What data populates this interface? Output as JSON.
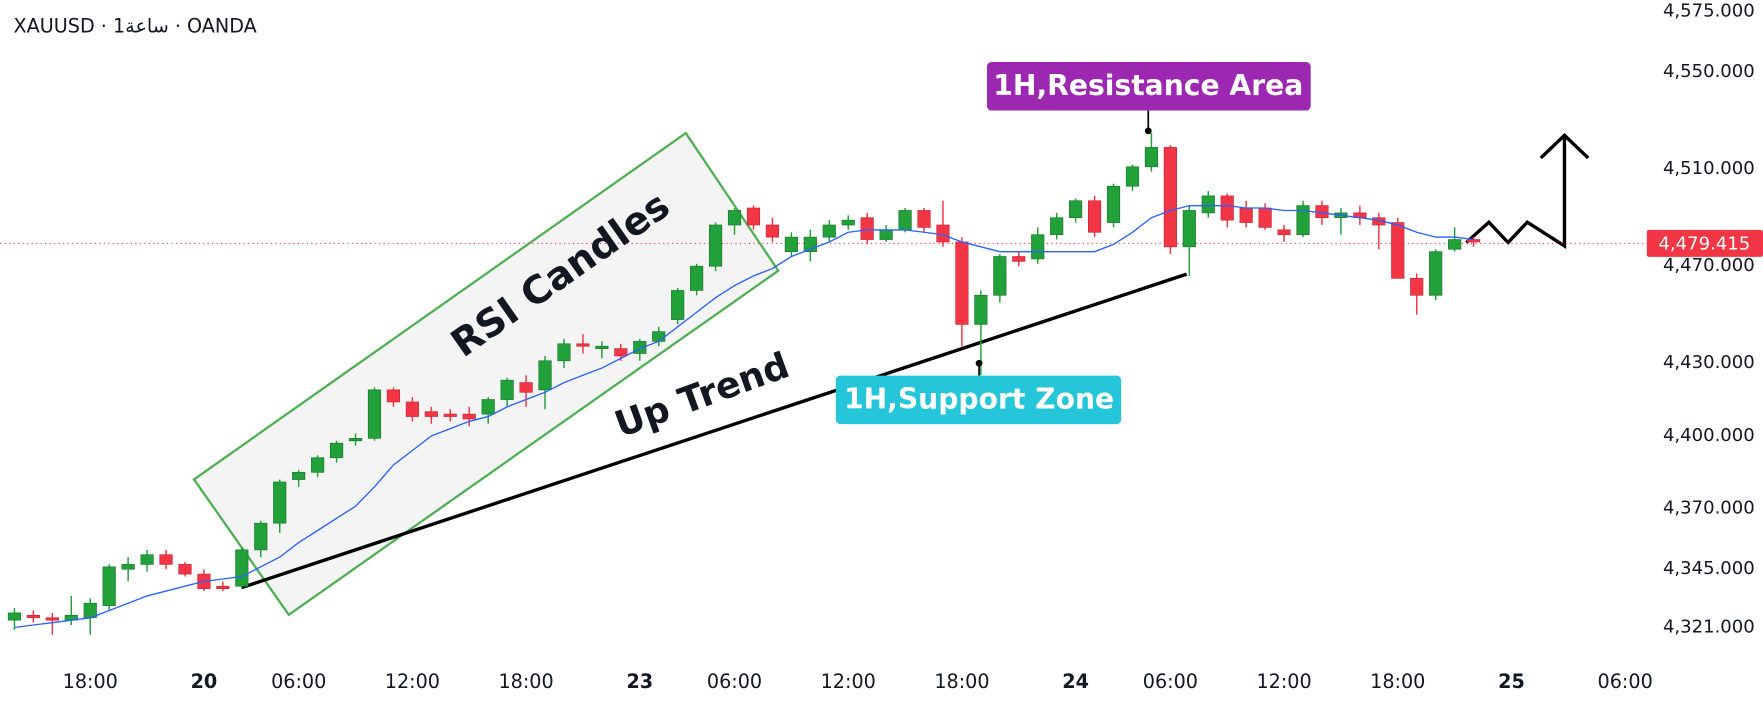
{
  "chart_data": {
    "type": "candlestick",
    "title": "XAUUSD · 1ساعة · OANDA",
    "categories": [
      null,
      null,
      null,
      null,
      "18:00",
      null,
      null,
      null,
      null,
      null,
      "20",
      null,
      null,
      null,
      null,
      "06:00",
      null,
      null,
      null,
      null,
      null,
      "12:00",
      null,
      null,
      null,
      null,
      null,
      "18:00",
      null,
      null,
      null,
      null,
      null,
      "23",
      null,
      null,
      null,
      null,
      "06:00",
      null,
      null,
      null,
      null,
      null,
      "12:00",
      null,
      null,
      null,
      null,
      null,
      "18:00",
      null,
      null,
      null,
      null,
      null,
      "24",
      null,
      null,
      null,
      null,
      "06:00",
      null,
      null,
      null,
      null,
      null,
      "12:00",
      null,
      null,
      null,
      null,
      null,
      "18:00",
      null,
      null,
      null,
      null,
      null,
      "25",
      null,
      null,
      null,
      null,
      null,
      "06:00",
      null
    ],
    "open": [
      4324,
      4326,
      4325,
      4324,
      4325,
      4330,
      4345,
      4347,
      4351,
      4347,
      4343,
      4338,
      4338,
      4353,
      4364,
      4382,
      4385,
      4391,
      4398,
      4399,
      4419,
      4414,
      4410,
      4409,
      4409,
      4409,
      4415,
      4422,
      4419,
      4431,
      4438,
      4436,
      4436,
      4434,
      4439,
      4448,
      4460,
      4470,
      4487,
      4494,
      4487,
      4476,
      4476,
      4482,
      4487,
      4490,
      4481,
      4485,
      4493,
      4487,
      4480,
      4446,
      4458,
      4474,
      4473,
      4483,
      4490,
      4497,
      4488,
      4503,
      4511,
      4519,
      4478,
      4492,
      4499,
      4494,
      4494,
      4485,
      4483,
      4495,
      4490,
      4492,
      4490,
      4488,
      4465,
      4458,
      4477,
      4481,
      null,
      null,
      null,
      null,
      null,
      null,
      null,
      null,
      null
    ],
    "high": [
      4329,
      4328,
      4327,
      4334,
      4333,
      4347,
      4350,
      4353,
      4353,
      4348,
      4345,
      4340,
      4354,
      4365,
      4382,
      4386,
      4392,
      4398,
      4401,
      4420,
      4420,
      4416,
      4412,
      4411,
      4412,
      4416,
      4424,
      4425,
      4433,
      4440,
      4442,
      4439,
      4438,
      4440,
      4445,
      4461,
      4471,
      4488,
      4494,
      4495,
      4490,
      4484,
      4485,
      4489,
      4491,
      4492,
      4487,
      4494,
      4494,
      4497,
      4482,
      4460,
      4475,
      4476,
      4486,
      4492,
      4498,
      4499,
      4504,
      4512,
      4525,
      4520,
      4495,
      4501,
      4500,
      4497,
      4496,
      4487,
      4497,
      4497,
      4494,
      4495,
      4492,
      4490,
      4467,
      4477,
      4486,
      4482,
      null,
      null,
      null,
      null,
      null,
      null,
      null,
      null,
      null
    ],
    "low": [
      4320,
      4323,
      4318,
      4322,
      4318,
      4328,
      4340,
      4344,
      4345,
      4342,
      4336,
      4336,
      4337,
      4350,
      4360,
      4379,
      4383,
      4389,
      4396,
      4398,
      4412,
      4406,
      4405,
      4406,
      4404,
      4405,
      4412,
      4412,
      4411,
      4428,
      4434,
      4432,
      4431,
      4431,
      4437,
      4446,
      4458,
      4468,
      4483,
      4485,
      4480,
      4474,
      4472,
      4480,
      4485,
      4479,
      4480,
      4484,
      4484,
      4478,
      4437,
      4425,
      4455,
      4470,
      4471,
      4481,
      4488,
      4482,
      4486,
      4501,
      4509,
      4475,
      4466,
      4490,
      4486,
      4486,
      4485,
      4480,
      4482,
      4487,
      4483,
      4487,
      4477,
      4465,
      4450,
      4456,
      4476,
      4478,
      null,
      null,
      null,
      null,
      null,
      null,
      null,
      null,
      null
    ],
    "close": [
      4327,
      4325,
      4324,
      4326,
      4331,
      4346,
      4347,
      4351,
      4347,
      4343,
      4337,
      4337,
      4353,
      4364,
      4381,
      4385,
      4391,
      4397,
      4399,
      4419,
      4414,
      4408,
      4408,
      4408,
      4407,
      4415,
      4423,
      4418,
      4431,
      4438,
      4437,
      4437,
      4433,
      4439,
      4443,
      4460,
      4470,
      4487,
      4493,
      4487,
      4482,
      4482,
      4482,
      4487,
      4489,
      4481,
      4485,
      4493,
      4486,
      4480,
      4446,
      4458,
      4474,
      4472,
      4483,
      4490,
      4497,
      4484,
      4503,
      4511,
      4519,
      4478,
      4493,
      4499,
      4489,
      4488,
      4486,
      4483,
      4495,
      4490,
      4492,
      4490,
      4487,
      4465,
      4458,
      4476,
      4481,
      4480,
      null,
      null,
      null,
      null,
      null,
      null,
      null,
      null,
      null
    ],
    "up_color": "#22a03a",
    "down_color": "#f23645",
    "ma": {
      "color": "#2962ff",
      "values": [
        4321,
        4322,
        4323,
        4324,
        4325,
        4328,
        4331,
        4334,
        4336,
        4338,
        4340,
        4341,
        4342,
        4346,
        4350,
        4356,
        4361,
        4366,
        4371,
        4379,
        4388,
        4394,
        4400,
        4403,
        4406,
        4408,
        4412,
        4415,
        4418,
        4422,
        4425,
        4428,
        4432,
        4436,
        4439,
        4445,
        4451,
        4457,
        4462,
        4466,
        4469,
        4474,
        4477,
        4480,
        4484,
        4485,
        4485,
        4485,
        4484,
        4483,
        4480,
        4478,
        4476,
        4476,
        4476,
        4476,
        4476,
        4476,
        4479,
        4484,
        4490,
        4493,
        4495,
        4495,
        4495,
        4494,
        4494,
        4493,
        4493,
        4492,
        4491,
        4490,
        4489,
        4487,
        4484,
        4482,
        4482,
        4481,
        null,
        null,
        null,
        null,
        null,
        null,
        null,
        null,
        null
      ]
    },
    "ylim": [
      4305.3,
      4579.8
    ],
    "yticks": [
      {
        "value": 4575,
        "label": "4,575.000"
      },
      {
        "value": 4550,
        "label": "4,550.000"
      },
      {
        "value": 4510,
        "label": "4,510.000"
      },
      {
        "value": 4470,
        "label": "4,470.000"
      },
      {
        "value": 4430,
        "label": "4,430.000"
      },
      {
        "value": 4400,
        "label": "4,400.000"
      },
      {
        "value": 4370,
        "label": "4,370.000"
      },
      {
        "value": 4345,
        "label": "4,345.000"
      },
      {
        "value": 4321,
        "label": "4,321.000"
      }
    ],
    "last_price": {
      "value": 4479.415,
      "label": "4,479.415",
      "color": "#f23645"
    },
    "annotations": [
      "RSI Candles",
      "Up Trend",
      "1H,Resistance Area",
      "1H,Support Zone"
    ]
  }
}
